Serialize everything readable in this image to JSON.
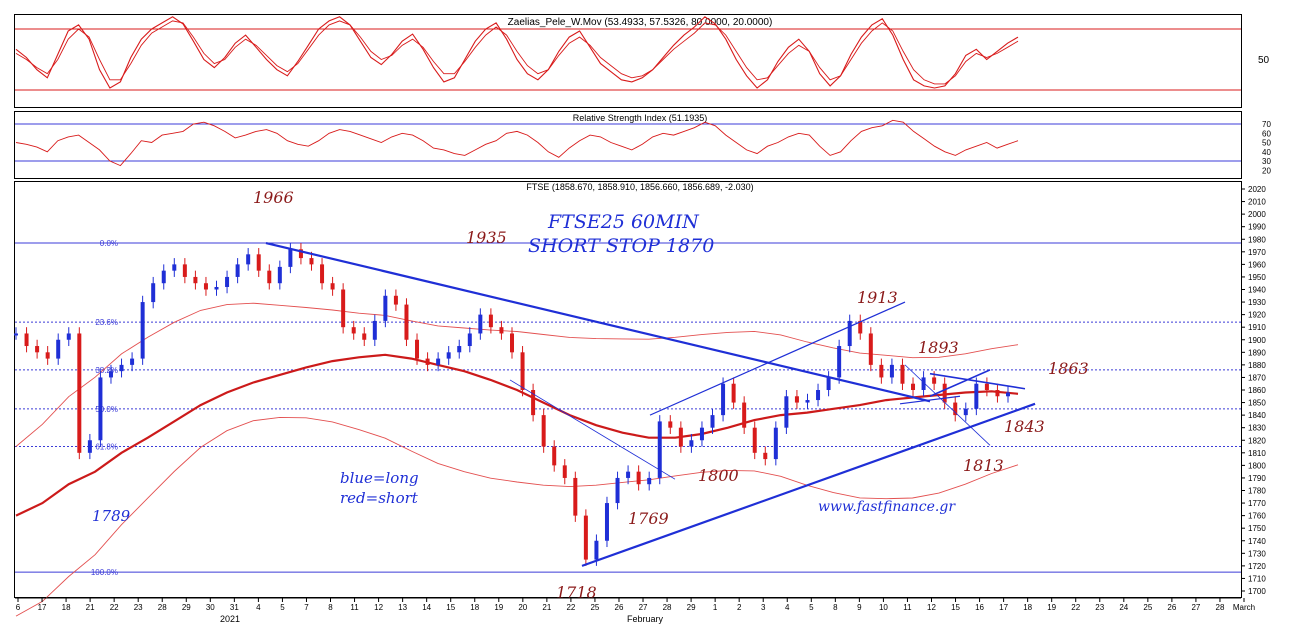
{
  "chart_data": [
    {
      "type": "line",
      "panel": "oscillator",
      "title": "Zaelias_Pele_W.Mov (53.4933, 57.5326, 80.0000, 20.0000)",
      "ylabel_ticks": [
        "50"
      ],
      "levels": [
        20,
        80
      ],
      "series": [
        {
          "values": [
            60,
            52,
            40,
            32,
            55,
            78,
            84,
            70,
            40,
            22,
            28,
            52,
            70,
            80,
            86,
            92,
            85,
            68,
            50,
            42,
            52,
            66,
            74,
            62,
            50,
            40,
            34,
            48,
            64,
            80,
            88,
            92,
            84,
            68,
            52,
            45,
            55,
            68,
            75,
            60,
            42,
            28,
            32,
            50,
            68,
            80,
            86,
            70,
            50,
            36,
            30,
            40,
            58,
            72,
            78,
            62,
            46,
            38,
            30,
            28,
            32,
            40,
            52,
            64,
            74,
            82,
            92,
            85,
            70,
            50,
            34,
            22,
            30,
            48,
            62,
            70,
            58,
            36,
            24,
            34,
            55,
            72,
            84,
            90,
            74,
            50,
            30,
            24,
            22,
            24,
            36,
            54,
            60,
            50,
            58,
            66,
            72
          ]
        },
        {
          "values": [
            56,
            50,
            42,
            36,
            50,
            70,
            80,
            72,
            50,
            30,
            30,
            46,
            64,
            76,
            82,
            88,
            86,
            72,
            56,
            46,
            50,
            62,
            70,
            64,
            54,
            44,
            38,
            46,
            60,
            74,
            84,
            88,
            84,
            72,
            58,
            50,
            54,
            64,
            70,
            62,
            48,
            36,
            36,
            48,
            62,
            74,
            82,
            74,
            58,
            44,
            36,
            40,
            54,
            66,
            72,
            64,
            52,
            44,
            36,
            32,
            34,
            40,
            50,
            60,
            68,
            76,
            86,
            84,
            74,
            58,
            42,
            30,
            32,
            44,
            56,
            64,
            58,
            42,
            30,
            34,
            50,
            66,
            78,
            86,
            78,
            58,
            40,
            30,
            26,
            26,
            34,
            48,
            56,
            52,
            56,
            62,
            68
          ]
        }
      ]
    },
    {
      "type": "line",
      "panel": "rsi",
      "title": "Relative Strength Index (51.1935)",
      "yticks": [
        "70",
        "60",
        "50",
        "40",
        "30",
        "20"
      ],
      "levels": [
        30,
        70
      ],
      "series": [
        {
          "values": [
            50,
            48,
            45,
            40,
            52,
            56,
            58,
            50,
            42,
            30,
            25,
            38,
            52,
            50,
            58,
            60,
            62,
            70,
            72,
            68,
            62,
            55,
            58,
            62,
            64,
            60,
            52,
            48,
            46,
            52,
            60,
            64,
            62,
            58,
            54,
            50,
            56,
            60,
            58,
            52,
            44,
            42,
            38,
            36,
            42,
            48,
            52,
            60,
            62,
            58,
            50,
            40,
            34,
            44,
            52,
            58,
            56,
            50,
            46,
            42,
            48,
            56,
            60,
            58,
            62,
            66,
            72,
            68,
            58,
            50,
            42,
            38,
            46,
            50,
            56,
            60,
            58,
            46,
            36,
            40,
            52,
            62,
            66,
            68,
            74,
            72,
            62,
            54,
            46,
            40,
            36,
            42,
            46,
            50,
            44,
            48,
            52
          ]
        }
      ]
    },
    {
      "type": "line",
      "panel": "price",
      "title": "FTSE (1858.670, 1858.910, 1856.660, 1856.689, -2.030)",
      "ylim": [
        1700,
        2020
      ],
      "yticks": [
        "2020",
        "2010",
        "2000",
        "1990",
        "1980",
        "1970",
        "1960",
        "1950",
        "1940",
        "1930",
        "1920",
        "1910",
        "1900",
        "1890",
        "1880",
        "1870",
        "1860",
        "1850",
        "1840",
        "1830",
        "1820",
        "1810",
        "1800",
        "1790",
        "1780",
        "1770",
        "1760",
        "1750",
        "1740",
        "1730",
        "1720",
        "1710",
        "1700"
      ],
      "xticks": [
        "6",
        "17",
        "18",
        "21",
        "22",
        "23",
        "28",
        "29",
        "30",
        "31",
        "4",
        "5",
        "7",
        "8",
        "11",
        "12",
        "13",
        "14",
        "15",
        "18",
        "19",
        "20",
        "21",
        "22",
        "25",
        "26",
        "27",
        "28",
        "29",
        "1",
        "2",
        "3",
        "4",
        "5",
        "8",
        "9",
        "10",
        "11",
        "12",
        "15",
        "16",
        "17",
        "18",
        "19",
        "22",
        "23",
        "24",
        "25",
        "26",
        "27",
        "28",
        "March"
      ],
      "month_labels": [
        "2021",
        "February"
      ],
      "fibonacci": [
        {
          "label": "0.0%",
          "value": 1977
        },
        {
          "label": "23.6%",
          "value": 1914
        },
        {
          "label": "38.2%",
          "value": 1876
        },
        {
          "label": "50.0%",
          "value": 1845
        },
        {
          "label": "61.8%",
          "value": 1815
        },
        {
          "label": "100.0%",
          "value": 1715
        }
      ],
      "series": [
        {
          "name": "price",
          "values": [
            1905,
            1895,
            1890,
            1885,
            1900,
            1905,
            1810,
            1820,
            1870,
            1875,
            1880,
            1885,
            1930,
            1945,
            1955,
            1960,
            1950,
            1945,
            1940,
            1942,
            1950,
            1960,
            1968,
            1955,
            1945,
            1958,
            1972,
            1965,
            1960,
            1945,
            1940,
            1910,
            1905,
            1900,
            1915,
            1935,
            1928,
            1900,
            1885,
            1880,
            1885,
            1890,
            1895,
            1905,
            1920,
            1910,
            1905,
            1890,
            1860,
            1840,
            1815,
            1800,
            1790,
            1760,
            1725,
            1740,
            1770,
            1790,
            1795,
            1785,
            1790,
            1835,
            1830,
            1815,
            1820,
            1830,
            1840,
            1865,
            1850,
            1830,
            1810,
            1805,
            1830,
            1855,
            1850,
            1852,
            1860,
            1870,
            1895,
            1915,
            1905,
            1880,
            1870,
            1880,
            1865,
            1860,
            1870,
            1865,
            1850,
            1840,
            1845,
            1865,
            1860,
            1855,
            1858
          ]
        },
        {
          "name": "moving average",
          "values": [
            1760,
            1770,
            1785,
            1795,
            1810,
            1822,
            1835,
            1848,
            1858,
            1866,
            1872,
            1878,
            1883,
            1886,
            1888,
            1885,
            1880,
            1875,
            1868,
            1860,
            1850,
            1840,
            1832,
            1826,
            1822,
            1822,
            1825,
            1830,
            1836,
            1840,
            1842,
            1845,
            1848,
            1852,
            1854,
            1856,
            1858,
            1859,
            1857
          ]
        }
      ],
      "annotations": [
        {
          "text": "1966",
          "color": "#8b1a1a"
        },
        {
          "text": "1935",
          "color": "#8b1a1a"
        },
        {
          "text": "FTSE25  60MIN",
          "color": "#1f2fd6"
        },
        {
          "text": "SHORT STOP 1870",
          "color": "#1f2fd6"
        },
        {
          "text": "1913",
          "color": "#8b1a1a"
        },
        {
          "text": "1893",
          "color": "#8b1a1a"
        },
        {
          "text": "1863",
          "color": "#8b1a1a"
        },
        {
          "text": "1843",
          "color": "#8b1a1a"
        },
        {
          "text": "1813",
          "color": "#8b1a1a"
        },
        {
          "text": "1800",
          "color": "#8b1a1a"
        },
        {
          "text": "1769",
          "color": "#8b1a1a"
        },
        {
          "text": "1718",
          "color": "#8b1a1a"
        },
        {
          "text": "blue=long",
          "color": "#1f2fd6"
        },
        {
          "text": "red=short",
          "color": "#1f2fd6"
        },
        {
          "text": "1789",
          "color": "#1f2fd6"
        },
        {
          "text": "www.fastfinance.gr",
          "color": "#1f2fd6"
        }
      ]
    }
  ],
  "colors": {
    "bull": "#1f2fd6",
    "bear": "#d81b1b",
    "ma": "#cc1a1a",
    "band": "#e35050",
    "trend": "#1f2fd6",
    "fib": "#3b3bd8"
  }
}
